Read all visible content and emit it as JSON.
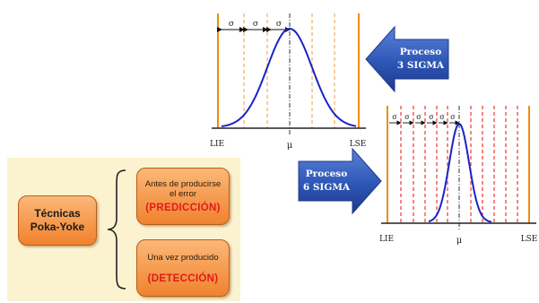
{
  "top_chart": {
    "sigma_labels": [
      "σ",
      "σ",
      "σ"
    ],
    "lie": "LIE",
    "mu": "μ",
    "lse": "LSE"
  },
  "bottom_chart": {
    "sigma_labels": [
      "σ",
      "σ",
      "σ",
      "σ",
      "σ",
      "σ"
    ],
    "lie": "LIE",
    "mu": "μ",
    "lse": "LSE"
  },
  "arrow_3sigma": {
    "line1": "Proceso",
    "line2": "3 SIGMA"
  },
  "arrow_6sigma": {
    "line1": "Proceso",
    "line2": "6 SIGMA"
  },
  "poka_yoke": {
    "main_line1": "Técnicas",
    "main_line2": "Poka-Yoke",
    "before_line1": "Antes de producirse",
    "before_line2": "el error",
    "before_tag": "(PREDICCIÓN)",
    "after_line1": "Una vez producido",
    "after_tag": "(DETECCIÓN)"
  },
  "colors": {
    "curve": "#1a22c8",
    "spec_limit": "#ef8b14",
    "sigma_line_top": "#f1a54a",
    "sigma_line_bottom": "#e8261e",
    "arrow_fill": "#2e56b6",
    "panel_bg": "#fbf3cf",
    "box_fill": "#f5953f",
    "tag_text": "#e11a1a"
  }
}
